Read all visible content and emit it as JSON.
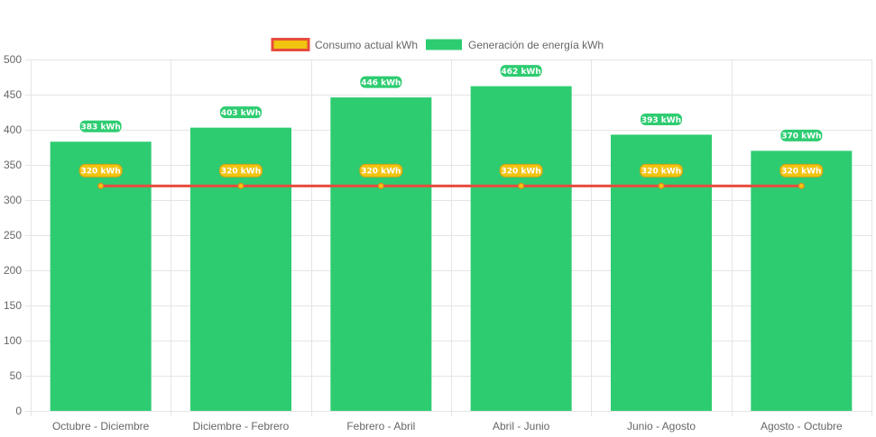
{
  "chart_data": {
    "type": "bar",
    "categories": [
      "Octubre - Diciembre",
      "Diciembre - Febrero",
      "Febrero - Abril",
      "Abril - Junio",
      "Junio - Agosto",
      "Agosto - Octubre"
    ],
    "series": [
      {
        "name": "Consumo actual kWh",
        "type": "line",
        "values": [
          320,
          320,
          320,
          320,
          320,
          320
        ],
        "labels": [
          "320 kWh",
          "320 kWh",
          "320 kWh",
          "320 kWh",
          "320 kWh",
          "320 kWh"
        ],
        "color": "#e74c3c",
        "fill_color": "#f1c40f"
      },
      {
        "name": "Generación de energía kWh",
        "type": "bar",
        "values": [
          383,
          403,
          446,
          462,
          393,
          370
        ],
        "labels": [
          "383 kWh",
          "403 kWh",
          "446 kWh",
          "462 kWh",
          "393 kWh",
          "370 kWh"
        ],
        "color": "#2ecc71"
      }
    ],
    "ylim": [
      0,
      500
    ],
    "yticks": [
      "0",
      "50",
      "100",
      "150",
      "200",
      "250",
      "300",
      "350",
      "400",
      "450",
      "500"
    ],
    "grid": true,
    "legend": "top-center",
    "colors": {
      "grid": "#e5e5e5",
      "axis_text": "#666666",
      "label_border_line": "#d4a017"
    }
  }
}
